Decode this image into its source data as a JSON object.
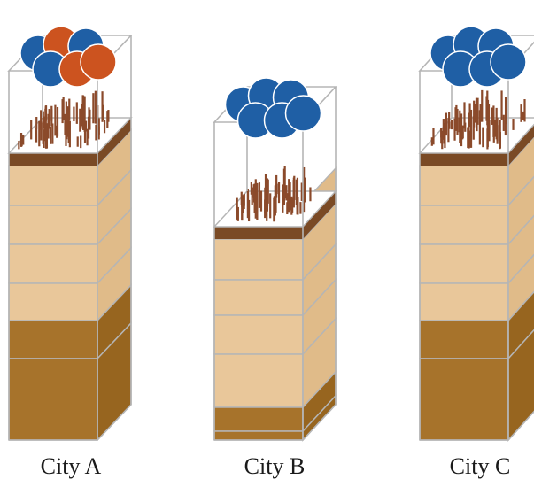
{
  "colors": {
    "background": "#ffffff",
    "frame": "#b5b5b5",
    "soil_light_front": "#e9c79a",
    "soil_light_side": "#e0bb89",
    "soil_dark_front": "#a7732b",
    "soil_dark_side": "#97651f",
    "topsoil_band": "#7a4a25",
    "plants": "#8b4a2b",
    "sphere_blue": "#1f5fa5",
    "sphere_orange": "#cc531f"
  },
  "columns": [
    {
      "label": "City A",
      "spheres": [
        "blue",
        "orange",
        "blue",
        "blue",
        "orange",
        "orange"
      ],
      "layers": [
        "light",
        "light",
        "light",
        "light",
        "light",
        "dark",
        "dark"
      ]
    },
    {
      "label": "City B",
      "spheres": [
        "blue",
        "blue",
        "blue",
        "blue",
        "blue",
        "blue"
      ],
      "layers": [
        "light",
        "light",
        "light",
        "light",
        "light",
        "light",
        "dark",
        "dark"
      ]
    },
    {
      "label": "City C",
      "spheres": [
        "blue",
        "blue",
        "blue",
        "blue",
        "blue",
        "blue"
      ],
      "layers": [
        "light",
        "light",
        "light",
        "light",
        "light",
        "dark",
        "dark"
      ]
    }
  ]
}
